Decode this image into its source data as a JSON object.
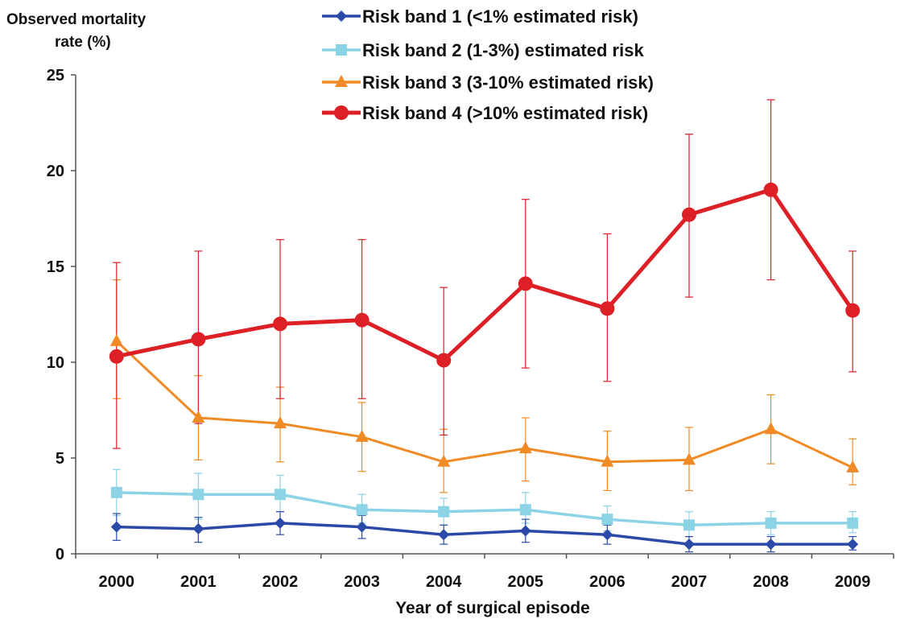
{
  "chart_data": {
    "type": "line",
    "title": "",
    "ylabel_lines": [
      "Observed mortality",
      "rate (%)"
    ],
    "xlabel": "Year of surgical episode",
    "categories": [
      "2000",
      "2001",
      "2002",
      "2003",
      "2004",
      "2005",
      "2006",
      "2007",
      "2008",
      "2009"
    ],
    "ylim": [
      0,
      25
    ],
    "yticks": [
      "0",
      "5",
      "10",
      "15",
      "20",
      "25"
    ],
    "grid": false,
    "legend_position": "top",
    "series": [
      {
        "name": "Risk band 1 (<1% estimated risk)",
        "marker": "diamond",
        "color": "#2b4aa8",
        "values": [
          1.4,
          1.3,
          1.6,
          1.4,
          1.0,
          1.2,
          1.0,
          0.5,
          0.5,
          0.5
        ],
        "err_low": [
          0.7,
          0.6,
          1.0,
          0.8,
          0.5,
          0.6,
          0.5,
          0.1,
          0.1,
          0.2
        ],
        "err_high": [
          2.1,
          1.9,
          2.2,
          2.0,
          1.5,
          1.8,
          1.5,
          0.9,
          0.9,
          0.9
        ]
      },
      {
        "name": "Risk band 2 (1-3%) estimated risk",
        "marker": "square",
        "color": "#8dd3e6",
        "values": [
          3.2,
          3.1,
          3.1,
          2.3,
          2.2,
          2.3,
          1.8,
          1.5,
          1.6,
          1.6
        ],
        "err_low": [
          2.0,
          1.8,
          2.2,
          1.6,
          1.5,
          1.6,
          1.2,
          0.9,
          1.0,
          1.1
        ],
        "err_high": [
          4.4,
          4.2,
          4.1,
          3.1,
          2.9,
          3.2,
          2.5,
          2.2,
          2.2,
          2.2
        ]
      },
      {
        "name": "Risk band 3 (3-10% estimated risk)",
        "marker": "triangle",
        "color": "#f08a24",
        "values": [
          11.1,
          7.1,
          6.8,
          6.1,
          4.8,
          5.5,
          4.8,
          4.9,
          6.5,
          4.5
        ],
        "err_low": [
          8.1,
          4.9,
          4.8,
          4.3,
          3.2,
          3.8,
          3.3,
          3.3,
          4.7,
          3.6
        ],
        "err_high": [
          14.3,
          9.3,
          8.7,
          7.9,
          6.5,
          7.1,
          6.4,
          6.6,
          8.3,
          6.0
        ]
      },
      {
        "name": "Risk band 4 (>10% estimated risk)",
        "marker": "circle",
        "color": "#dd1f26",
        "values": [
          10.3,
          11.2,
          12.0,
          12.2,
          10.1,
          14.1,
          12.8,
          17.7,
          19.0,
          12.7
        ],
        "err_low": [
          5.5,
          6.8,
          8.1,
          8.1,
          6.2,
          9.7,
          9.0,
          13.4,
          14.3,
          9.5
        ],
        "err_high": [
          15.2,
          15.8,
          16.4,
          16.4,
          13.9,
          18.5,
          16.7,
          21.9,
          23.7,
          15.8
        ]
      }
    ]
  }
}
